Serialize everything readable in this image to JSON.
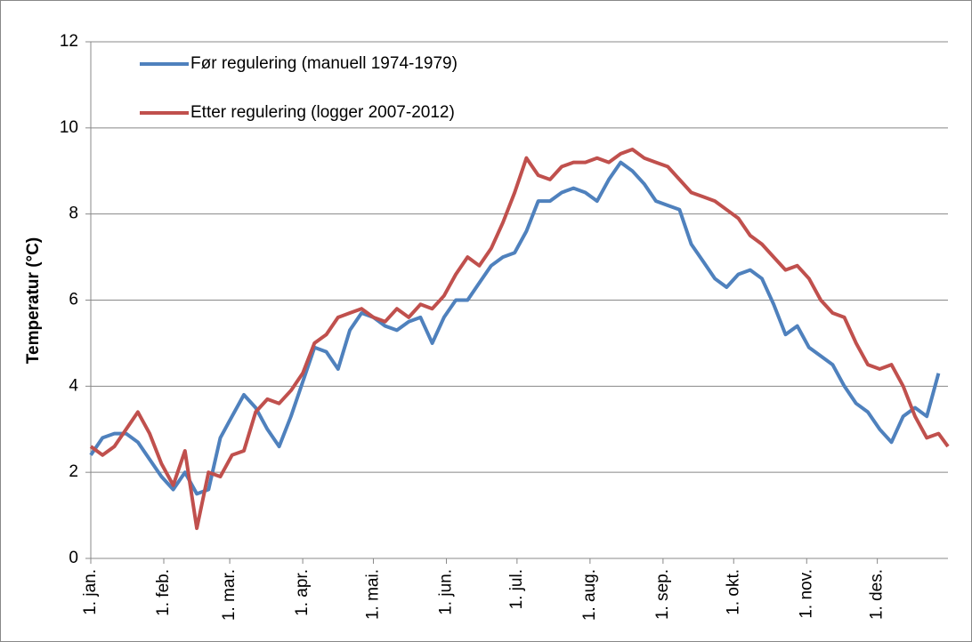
{
  "chart_data": {
    "type": "line",
    "ylabel": "Temperatur (°C)",
    "x": [
      1,
      6,
      11,
      16,
      21,
      26,
      31,
      36,
      41,
      46,
      51,
      56,
      61,
      66,
      71,
      76,
      81,
      86,
      91,
      96,
      101,
      106,
      111,
      116,
      121,
      126,
      131,
      136,
      141,
      146,
      151,
      156,
      161,
      166,
      171,
      176,
      181,
      186,
      191,
      196,
      201,
      206,
      211,
      216,
      221,
      226,
      231,
      236,
      241,
      246,
      251,
      256,
      261,
      266,
      271,
      276,
      281,
      286,
      291,
      296,
      301,
      306,
      311,
      316,
      321,
      326,
      331,
      336,
      341,
      346,
      351,
      356,
      361,
      365
    ],
    "series": [
      {
        "name": "Før regulering (manuell 1974-1979)",
        "color": "#4f81bd",
        "values": [
          2.4,
          2.8,
          2.9,
          2.9,
          2.7,
          2.3,
          1.9,
          1.6,
          2.0,
          1.5,
          1.6,
          2.8,
          3.3,
          3.8,
          3.5,
          3.0,
          2.6,
          3.3,
          4.1,
          4.9,
          4.8,
          4.4,
          5.3,
          5.7,
          5.6,
          5.4,
          5.3,
          5.5,
          5.6,
          5.0,
          5.6,
          6.0,
          6.0,
          6.4,
          6.8,
          7.0,
          7.1,
          7.6,
          8.3,
          8.3,
          8.5,
          8.6,
          8.5,
          8.3,
          8.8,
          9.2,
          9.0,
          8.7,
          8.3,
          8.2,
          8.1,
          7.3,
          6.9,
          6.5,
          6.3,
          6.6,
          6.7,
          6.5,
          5.9,
          5.2,
          5.4,
          4.9,
          4.7,
          4.5,
          4.0,
          3.6,
          3.4,
          3.0,
          2.7,
          3.3,
          3.5,
          3.3,
          4.3,
          null
        ]
      },
      {
        "name": "Etter regulering (logger 2007-2012)",
        "color": "#c0504d",
        "values": [
          2.6,
          2.4,
          2.6,
          3.0,
          3.4,
          2.9,
          2.2,
          1.7,
          2.5,
          0.7,
          2.0,
          1.9,
          2.4,
          2.5,
          3.4,
          3.7,
          3.6,
          3.9,
          4.3,
          5.0,
          5.2,
          5.6,
          5.7,
          5.8,
          5.6,
          5.5,
          5.8,
          5.6,
          5.9,
          5.8,
          6.1,
          6.6,
          7.0,
          6.8,
          7.2,
          7.8,
          8.5,
          9.3,
          8.9,
          8.8,
          9.1,
          9.2,
          9.2,
          9.3,
          9.2,
          9.4,
          9.5,
          9.3,
          9.2,
          9.1,
          8.8,
          8.5,
          8.4,
          8.3,
          8.1,
          7.9,
          7.5,
          7.3,
          7.0,
          6.7,
          6.8,
          6.5,
          6.0,
          5.7,
          5.6,
          5.0,
          4.5,
          4.4,
          4.5,
          4.0,
          3.3,
          2.8,
          2.9,
          2.6
        ]
      }
    ],
    "xlim": [
      1,
      365
    ],
    "xticks": [
      {
        "value": 1,
        "label": "1. jan."
      },
      {
        "value": 32,
        "label": "1. feb."
      },
      {
        "value": 60,
        "label": "1. mar."
      },
      {
        "value": 91,
        "label": "1. apr."
      },
      {
        "value": 121,
        "label": "1. mai."
      },
      {
        "value": 152,
        "label": "1. jun."
      },
      {
        "value": 182,
        "label": "1. jul."
      },
      {
        "value": 213,
        "label": "1. aug."
      },
      {
        "value": 244,
        "label": "1. sep."
      },
      {
        "value": 274,
        "label": "1. okt."
      },
      {
        "value": 305,
        "label": "1. nov."
      },
      {
        "value": 335,
        "label": "1. des."
      }
    ],
    "ylim": [
      0,
      12
    ],
    "yticks": [
      0,
      2,
      4,
      6,
      8,
      10,
      12
    ],
    "grid": true,
    "legend": "upper left"
  }
}
